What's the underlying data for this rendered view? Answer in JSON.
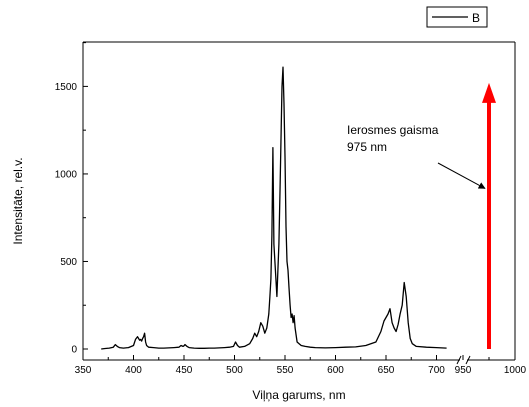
{
  "chart_data": {
    "type": "line",
    "xlabel": "Viļņa garums, nm",
    "ylabel": "Intensitāte, rel.v.",
    "xlim": [
      350,
      1000
    ],
    "ylim": [
      -30,
      1750
    ],
    "x_break": {
      "from": 725,
      "to": 940
    },
    "x_ticks": [
      350,
      400,
      450,
      500,
      550,
      600,
      650,
      700,
      950,
      1000
    ],
    "x_tick_labels": [
      "350",
      "400",
      "450",
      "500",
      "550",
      "600",
      "650",
      "700",
      "950",
      "1000"
    ],
    "y_ticks": [
      0,
      500,
      1000,
      1500
    ],
    "y_tick_labels": [
      "0",
      "500",
      "1000",
      "1500"
    ],
    "legend": {
      "position": "top-right",
      "entries": [
        "B"
      ]
    },
    "series": [
      {
        "name": "B",
        "color": "#000000",
        "x": [
          368,
          372,
          376,
          380,
          382,
          384,
          386,
          390,
          395,
          400,
          402,
          404,
          405,
          406,
          407,
          408,
          409,
          410,
          411,
          412,
          413,
          415,
          420,
          425,
          430,
          435,
          440,
          445,
          447,
          449,
          450,
          451,
          453,
          455,
          460,
          465,
          470,
          475,
          480,
          485,
          490,
          495,
          499,
          501,
          503,
          505,
          510,
          515,
          518,
          520,
          522,
          524,
          526,
          528,
          530,
          532,
          534,
          535,
          536,
          537,
          538,
          539,
          540,
          541,
          542,
          543,
          544,
          545,
          546,
          547,
          548,
          549,
          550,
          551,
          552,
          553,
          554,
          555,
          556,
          557,
          558,
          559,
          560,
          561,
          562,
          564,
          566,
          570,
          575,
          580,
          590,
          600,
          610,
          620,
          630,
          640,
          645,
          648,
          650,
          652,
          654,
          656,
          658,
          660,
          662,
          664,
          666,
          668,
          670,
          672,
          674,
          676,
          680,
          690,
          700,
          710
        ],
        "y": [
          0,
          3,
          5,
          10,
          25,
          15,
          8,
          5,
          8,
          20,
          55,
          70,
          60,
          50,
          55,
          45,
          60,
          70,
          90,
          40,
          20,
          10,
          8,
          5,
          5,
          6,
          8,
          10,
          20,
          15,
          18,
          25,
          15,
          8,
          5,
          4,
          4,
          5,
          5,
          6,
          8,
          10,
          15,
          40,
          20,
          10,
          15,
          30,
          60,
          90,
          70,
          100,
          150,
          130,
          90,
          120,
          200,
          300,
          400,
          650,
          1150,
          600,
          500,
          400,
          300,
          450,
          600,
          900,
          1200,
          1500,
          1610,
          1400,
          1100,
          700,
          500,
          450,
          350,
          250,
          180,
          200,
          150,
          190,
          120,
          80,
          40,
          30,
          20,
          15,
          10,
          8,
          6,
          8,
          10,
          12,
          20,
          40,
          100,
          160,
          180,
          200,
          230,
          150,
          120,
          100,
          140,
          200,
          250,
          380,
          300,
          150,
          60,
          30,
          15,
          10,
          8,
          5
        ]
      }
    ],
    "annotations": [
      {
        "lines": [
          "Ierosmes gaisma",
          "975 nm"
        ],
        "arrow_to": {
          "x": 975,
          "y": 900
        }
      }
    ],
    "marker": {
      "x": 975,
      "y_from": 0,
      "y_to": 1520,
      "color": "#ff0000"
    }
  }
}
